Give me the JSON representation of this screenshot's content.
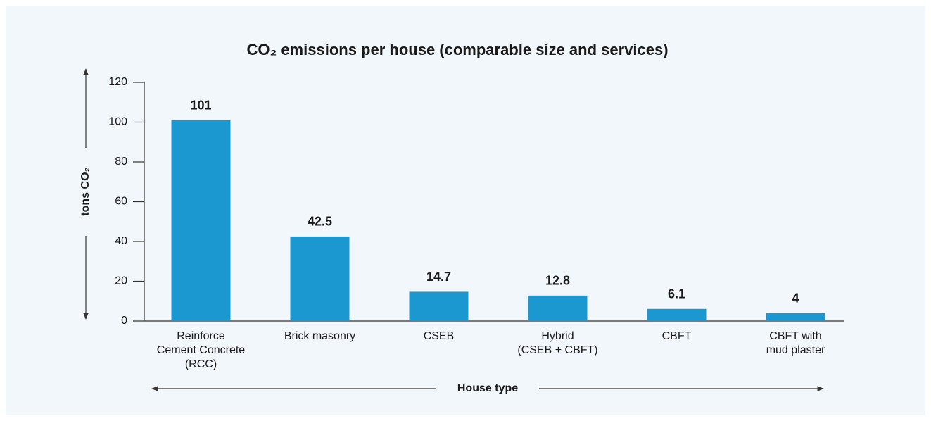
{
  "chart_data": {
    "type": "bar",
    "title": "CO₂ emissions per house (comparable size and services)",
    "ylabel": "tons CO₂",
    "xlabel": "House type",
    "categories": [
      [
        "Reinforce",
        "Cement Concrete",
        "(RCC)"
      ],
      [
        "Brick masonry"
      ],
      [
        "CSEB"
      ],
      [
        "Hybrid",
        "(CSEB + CBFT)"
      ],
      [
        "CBFT"
      ],
      [
        "CBFT with",
        "mud plaster"
      ]
    ],
    "values": [
      101,
      42.5,
      14.7,
      12.8,
      6.1,
      4
    ],
    "color": "#1b98d0",
    "ylim": [
      0,
      120
    ],
    "yticks": [
      0,
      20,
      40,
      60,
      80,
      100,
      120
    ]
  }
}
